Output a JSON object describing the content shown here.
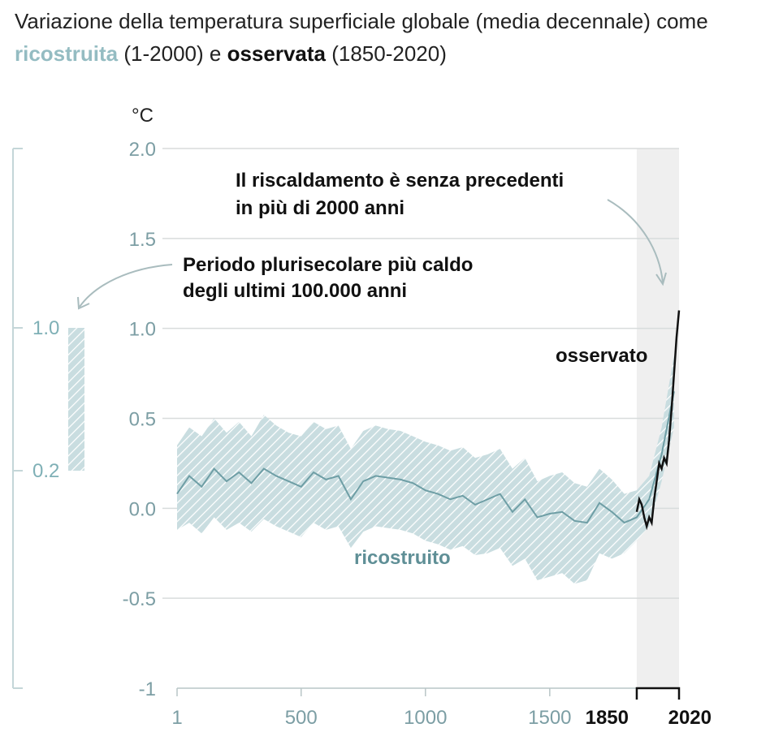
{
  "title": {
    "part1": "Variazione della temperatura superficiale globale (media decennale) come ",
    "reconstructed": "ricostruita",
    "part2": " (1-2000) e ",
    "observed": "osservata",
    "part3": " (1850-2020)"
  },
  "unit": "°C",
  "annotations": {
    "unprecedented_line1": "Il riscaldamento è senza precedenti",
    "unprecedented_line2": "in più di 2000 anni",
    "warmest_line1": "Periodo plurisecolare più caldo",
    "warmest_line2": "degli ultimi 100.000 anni"
  },
  "side_panel": {
    "upper": "1.0",
    "lower": "0.2",
    "range": [
      0.2,
      1.0
    ]
  },
  "colors": {
    "reconstructed": "#6e9ea5",
    "band": "#b9d3d7",
    "observed": "#111111",
    "grid": "#d8dcdc",
    "shade": "#efefef"
  },
  "chart_data": {
    "type": "line",
    "title": "Variazione della temperatura superficiale globale (media decennale) come ricostruita (1-2000) e osservata (1850-2020)",
    "ylabel": "°C",
    "xlim": [
      1,
      2020
    ],
    "ylim": [
      -1,
      2
    ],
    "y_ticks": [
      "2.0",
      "1.5",
      "1.0",
      "0.5",
      "0.0",
      "-0.5",
      "-1"
    ],
    "x_ticks": [
      "1",
      "500",
      "1000",
      "1500"
    ],
    "x_ticks_bold": [
      "1850",
      "2020"
    ],
    "grid": true,
    "series": [
      {
        "name": "ricostruito",
        "x": [
          1,
          50,
          100,
          150,
          200,
          250,
          300,
          350,
          400,
          450,
          500,
          550,
          600,
          650,
          700,
          750,
          800,
          850,
          900,
          950,
          1000,
          1050,
          1100,
          1150,
          1200,
          1250,
          1300,
          1350,
          1400,
          1450,
          1500,
          1550,
          1600,
          1650,
          1700,
          1750,
          1800,
          1850,
          1900,
          1950,
          2000
        ],
        "y": [
          0.08,
          0.18,
          0.12,
          0.22,
          0.15,
          0.2,
          0.14,
          0.22,
          0.18,
          0.15,
          0.12,
          0.2,
          0.16,
          0.18,
          0.05,
          0.15,
          0.18,
          0.17,
          0.16,
          0.14,
          0.1,
          0.08,
          0.05,
          0.07,
          0.02,
          0.05,
          0.08,
          -0.02,
          0.05,
          -0.05,
          -0.03,
          -0.02,
          -0.07,
          -0.08,
          0.03,
          -0.02,
          -0.08,
          -0.05,
          0.05,
          0.3,
          0.65
        ],
        "upper": [
          0.35,
          0.45,
          0.4,
          0.5,
          0.42,
          0.48,
          0.4,
          0.52,
          0.46,
          0.42,
          0.4,
          0.48,
          0.44,
          0.46,
          0.33,
          0.43,
          0.46,
          0.44,
          0.43,
          0.4,
          0.37,
          0.35,
          0.32,
          0.34,
          0.28,
          0.3,
          0.33,
          0.22,
          0.28,
          0.15,
          0.18,
          0.2,
          0.14,
          0.12,
          0.22,
          0.16,
          0.08,
          0.1,
          0.18,
          0.45,
          0.85
        ],
        "lower": [
          -0.12,
          -0.08,
          -0.14,
          -0.05,
          -0.12,
          -0.08,
          -0.13,
          -0.06,
          -0.1,
          -0.13,
          -0.16,
          -0.08,
          -0.12,
          -0.1,
          -0.22,
          -0.13,
          -0.1,
          -0.11,
          -0.12,
          -0.14,
          -0.18,
          -0.2,
          -0.23,
          -0.21,
          -0.26,
          -0.25,
          -0.22,
          -0.32,
          -0.28,
          -0.4,
          -0.38,
          -0.36,
          -0.42,
          -0.4,
          -0.25,
          -0.28,
          -0.25,
          -0.18,
          -0.1,
          0.15,
          0.45
        ]
      },
      {
        "name": "osservato",
        "x": [
          1850,
          1860,
          1870,
          1880,
          1890,
          1900,
          1910,
          1920,
          1930,
          1940,
          1950,
          1960,
          1970,
          1980,
          1990,
          2000,
          2010,
          2020
        ],
        "y": [
          -0.02,
          0.05,
          0.02,
          -0.05,
          -0.1,
          -0.05,
          -0.08,
          0.05,
          0.15,
          0.25,
          0.22,
          0.28,
          0.25,
          0.38,
          0.55,
          0.75,
          0.95,
          1.1
        ]
      }
    ]
  }
}
